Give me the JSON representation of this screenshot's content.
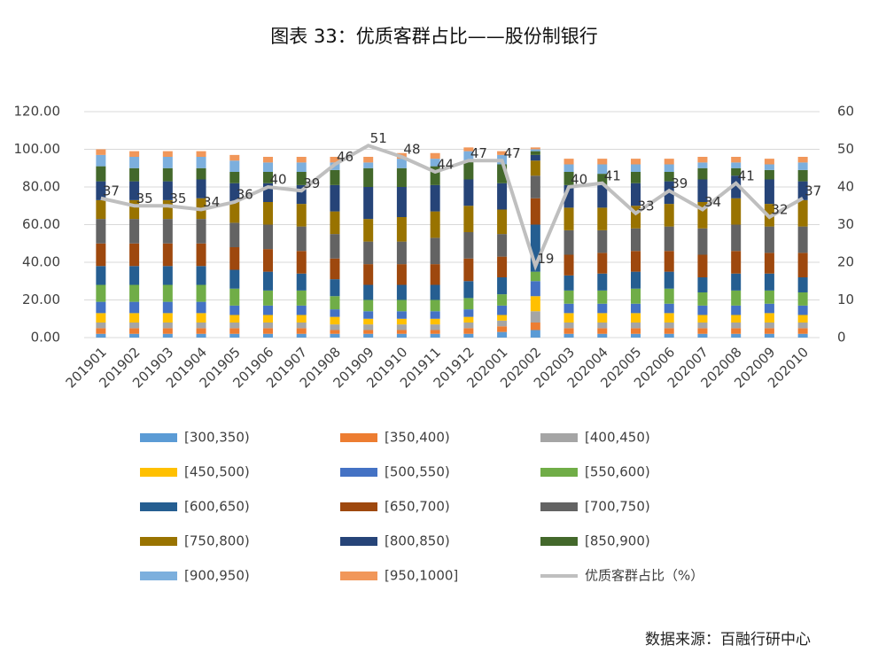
{
  "chart_data": {
    "type": "bar",
    "stacked": true,
    "title": "图表 33：优质客群占比——股份制银行",
    "source": "数据来源：百融行研中心",
    "categories": [
      "201901",
      "201902",
      "201903",
      "201904",
      "201905",
      "201906",
      "201907",
      "201908",
      "201909",
      "201910",
      "201911",
      "201912",
      "202001",
      "202002",
      "202003",
      "202004",
      "202005",
      "202006",
      "202007",
      "202008",
      "202009",
      "202010"
    ],
    "ylim": [
      0,
      120
    ],
    "yticks": [
      {
        "value": 0,
        "label": "0.00"
      },
      {
        "value": 20,
        "label": "20.00"
      },
      {
        "value": 40,
        "label": "40.00"
      },
      {
        "value": 60,
        "label": "60.00"
      },
      {
        "value": 80,
        "label": "80.00"
      },
      {
        "value": 100,
        "label": "100.00"
      },
      {
        "value": 120,
        "label": "120.00"
      }
    ],
    "y2lim": [
      0,
      60
    ],
    "y2ticks": [
      0,
      10,
      20,
      30,
      40,
      50,
      60
    ],
    "grid": true,
    "series": [
      {
        "name": "[300,350)",
        "color": "#5b9bd5",
        "values": [
          2,
          2,
          2,
          2,
          2,
          2,
          2,
          2,
          2,
          2,
          2,
          2,
          3,
          4,
          2,
          2,
          2,
          2,
          2,
          2,
          2,
          2
        ]
      },
      {
        "name": "[350,400)",
        "color": "#ed7d31",
        "values": [
          3,
          3,
          3,
          3,
          3,
          3,
          3,
          2,
          2,
          2,
          2,
          3,
          3,
          4,
          3,
          3,
          3,
          3,
          3,
          3,
          3,
          3
        ]
      },
      {
        "name": "[400,450)",
        "color": "#a5a5a5",
        "values": [
          3,
          3,
          3,
          3,
          3,
          3,
          3,
          3,
          3,
          3,
          3,
          3,
          3,
          6,
          3,
          3,
          3,
          3,
          3,
          3,
          3,
          3
        ]
      },
      {
        "name": "[450,500)",
        "color": "#ffc000",
        "values": [
          5,
          5,
          5,
          5,
          4,
          4,
          4,
          4,
          3,
          3,
          3,
          3,
          3,
          8,
          5,
          5,
          5,
          5,
          4,
          4,
          5,
          4
        ]
      },
      {
        "name": "[500,550)",
        "color": "#4472c4",
        "values": [
          6,
          6,
          6,
          6,
          5,
          5,
          5,
          4,
          4,
          4,
          4,
          4,
          5,
          8,
          5,
          5,
          5,
          5,
          5,
          5,
          5,
          5
        ]
      },
      {
        "name": "[550,600)",
        "color": "#70ad47",
        "values": [
          9,
          9,
          9,
          9,
          9,
          8,
          8,
          7,
          6,
          6,
          6,
          6,
          6,
          5,
          7,
          7,
          8,
          8,
          7,
          8,
          7,
          7
        ]
      },
      {
        "name": "[600,650)",
        "color": "#255e91",
        "values": [
          10,
          10,
          10,
          10,
          10,
          10,
          9,
          9,
          8,
          8,
          8,
          9,
          9,
          25,
          8,
          9,
          9,
          9,
          8,
          9,
          9,
          8
        ]
      },
      {
        "name": "[650,700)",
        "color": "#9e480e",
        "values": [
          12,
          12,
          12,
          12,
          12,
          12,
          12,
          11,
          11,
          11,
          11,
          12,
          11,
          14,
          11,
          11,
          11,
          11,
          12,
          12,
          11,
          13
        ]
      },
      {
        "name": "[700,750)",
        "color": "#636363",
        "values": [
          13,
          13,
          13,
          13,
          13,
          13,
          13,
          13,
          12,
          12,
          14,
          14,
          12,
          12,
          13,
          12,
          12,
          13,
          14,
          14,
          14,
          14
        ]
      },
      {
        "name": "[750,800)",
        "color": "#997300",
        "values": [
          10,
          10,
          10,
          11,
          11,
          12,
          12,
          12,
          12,
          13,
          14,
          14,
          13,
          8,
          12,
          12,
          12,
          12,
          14,
          14,
          12,
          14
        ]
      },
      {
        "name": "[800,850)",
        "color": "#264478",
        "values": [
          10,
          10,
          10,
          10,
          10,
          10,
          10,
          14,
          17,
          16,
          14,
          14,
          14,
          3,
          12,
          12,
          12,
          12,
          12,
          12,
          13,
          10
        ]
      },
      {
        "name": "[850,900)",
        "color": "#43682b",
        "values": [
          8,
          7,
          7,
          6,
          6,
          6,
          7,
          8,
          10,
          10,
          10,
          10,
          10,
          2,
          7,
          6,
          6,
          5,
          6,
          4,
          5,
          6
        ]
      },
      {
        "name": "[900,950)",
        "color": "#7cafdd",
        "values": [
          6,
          6,
          6,
          6,
          6,
          5,
          5,
          4,
          3,
          5,
          4,
          5,
          5,
          1,
          4,
          5,
          4,
          4,
          3,
          3,
          3,
          4
        ]
      },
      {
        "name": "[950,1000]",
        "color": "#f1975a",
        "values": [
          3,
          3,
          3,
          3,
          3,
          3,
          3,
          3,
          3,
          3,
          3,
          2,
          2,
          1,
          3,
          3,
          3,
          3,
          3,
          3,
          3,
          3
        ]
      },
      {
        "name": "优质客群占比（%）",
        "color": "#bfbfbf",
        "type": "line",
        "axis": "y2",
        "values": [
          37,
          35,
          35,
          34,
          36,
          40,
          39,
          46,
          51,
          48,
          44,
          47,
          47,
          19,
          40,
          41,
          33,
          39,
          34,
          41,
          32,
          37
        ]
      }
    ]
  }
}
